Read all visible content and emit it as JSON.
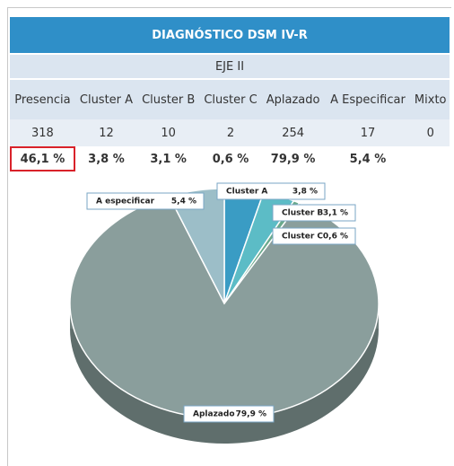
{
  "table": {
    "title": "DIAGNÓSTICO DSM IV-R",
    "subtitle": "EJE II",
    "header": [
      "Presencia",
      "Cluster A",
      "Cluster B",
      "Cluster C",
      "Aplazado",
      "A Especificar",
      "Mixto"
    ],
    "rows": [
      [
        318,
        12,
        10,
        2,
        254,
        17,
        0
      ],
      [
        "46,1 %",
        "3,8 %",
        "3,1 %",
        "0,6 %",
        "79,9 %",
        "5,4 %",
        null
      ]
    ]
  },
  "chart_data": {
    "type": "pie",
    "categories": [
      "Cluster A",
      "Cluster B",
      "Cluster C",
      "Aplazado",
      "A especificar"
    ],
    "values": [
      3.8,
      3.1,
      0.6,
      79.9,
      5.4
    ],
    "value_labels": [
      "3,8 %",
      "3,1 %",
      "0,6 %",
      "79,9 %",
      "5,4 %"
    ],
    "colors": [
      "#3a9cc4",
      "#5cbcc6",
      "#6aa98c",
      "#8a9e9c",
      "#9cbec8"
    ]
  }
}
